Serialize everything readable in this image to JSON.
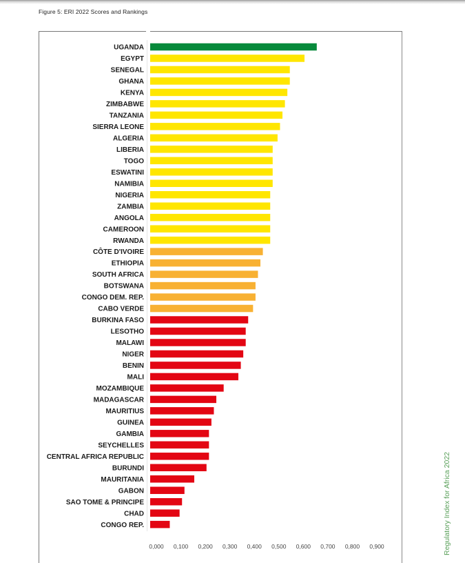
{
  "figure_title": "Figure 5: ERI 2022 Scores and Rankings",
  "side_text": "Regulatory Index for Africa 2022",
  "colors": {
    "green": "#078a3b",
    "yellow": "#ffe600",
    "orange": "#f8b133",
    "red": "#e30613"
  },
  "chart_data": {
    "type": "bar",
    "orientation": "horizontal",
    "title": "Figure 5: ERI 2022 Scores and Rankings",
    "xlabel": "",
    "ylabel": "",
    "xlim": [
      0,
      0.9
    ],
    "xticks": [
      0,
      0.1,
      0.2,
      0.3,
      0.4,
      0.5,
      0.6,
      0.7,
      0.8,
      0.9
    ],
    "xtick_labels": [
      "0,000",
      "0,100",
      "0,200",
      "0,300",
      "0,400",
      "0,500",
      "0,600",
      "0,700",
      "0,800",
      "0,900"
    ],
    "grid": false,
    "categories": [
      "UGANDA",
      "EGYPT",
      "SENEGAL",
      "GHANA",
      "KENYA",
      "ZIMBABWE",
      "TANZANIA",
      "SIERRA LEONE",
      "ALGERIA",
      "LIBERIA",
      "TOGO",
      "ESWATINI",
      "NAMIBIA",
      "NIGERIA",
      "ZAMBIA",
      "ANGOLA",
      "CAMEROON",
      "RWANDA",
      "CÔTE D'IVOIRE",
      "ETHIOPIA",
      "SOUTH AFRICA",
      "BOTSWANA",
      "CONGO DEM. REP.",
      "CABO VERDE",
      "BURKINA FASO",
      "LESOTHO",
      "MALAWI",
      "NIGER",
      "BENIN",
      "MALI",
      "MOZAMBIQUE",
      "MADAGASCAR",
      "MAURITIUS",
      "GUINEA",
      "GAMBIA",
      "SEYCHELLES",
      "CENTRAL AFRICA REPUBLIC",
      "BURUNDI",
      "MAURITANIA",
      "GABON",
      "SAO TOME & PRINCIPE",
      "CHAD",
      "CONGO REP."
    ],
    "values": [
      0.68,
      0.63,
      0.57,
      0.57,
      0.56,
      0.55,
      0.54,
      0.53,
      0.52,
      0.5,
      0.5,
      0.5,
      0.5,
      0.49,
      0.49,
      0.49,
      0.49,
      0.49,
      0.46,
      0.45,
      0.44,
      0.43,
      0.43,
      0.42,
      0.4,
      0.39,
      0.39,
      0.38,
      0.37,
      0.36,
      0.3,
      0.27,
      0.26,
      0.25,
      0.24,
      0.24,
      0.24,
      0.23,
      0.18,
      0.14,
      0.13,
      0.12,
      0.08
    ],
    "bar_colors": [
      "green",
      "yellow",
      "yellow",
      "yellow",
      "yellow",
      "yellow",
      "yellow",
      "yellow",
      "yellow",
      "yellow",
      "yellow",
      "yellow",
      "yellow",
      "yellow",
      "yellow",
      "yellow",
      "yellow",
      "yellow",
      "orange",
      "orange",
      "orange",
      "orange",
      "orange",
      "orange",
      "red",
      "red",
      "red",
      "red",
      "red",
      "red",
      "red",
      "red",
      "red",
      "red",
      "red",
      "red",
      "red",
      "red",
      "red",
      "red",
      "red",
      "red",
      "red"
    ]
  }
}
